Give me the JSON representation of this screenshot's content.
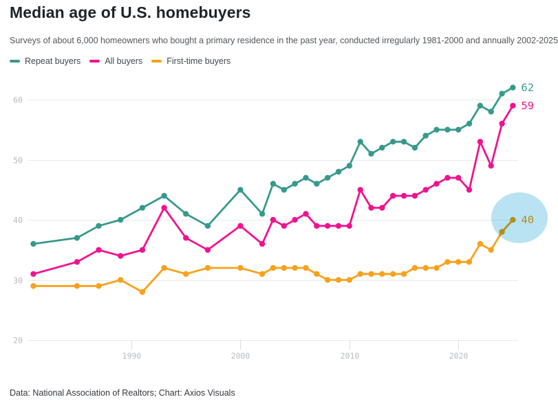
{
  "header": {
    "title": "Median age of U.S. homebuyers",
    "subtitle": "Surveys of about 6,000 homeowners who bought a primary residence in the past year, conducted irregularly 1981-2000 and annually 2002-2025"
  },
  "footer": {
    "source": "Data: National Association of Realtors; Chart: Axios Visuals"
  },
  "colors": {
    "repeat_buyers": "#36998C",
    "all_buyers": "#F0128F",
    "first_time_buyers": "#F7A11C",
    "highlight_circle": "#B9E3F3",
    "gridline": "#E9EBEC",
    "tick": "#D8DBDD",
    "axis_label": "#B5BBBF"
  },
  "chart_data": {
    "type": "line",
    "x": [
      1981,
      1985,
      1987,
      1989,
      1991,
      1993,
      1995,
      1997,
      2000,
      2002,
      2003,
      2004,
      2005,
      2006,
      2007,
      2008,
      2009,
      2010,
      2011,
      2012,
      2013,
      2014,
      2015,
      2016,
      2017,
      2018,
      2019,
      2020,
      2021,
      2022,
      2023,
      2024,
      2025
    ],
    "series": [
      {
        "name": "Repeat buyers",
        "color": "#36998C",
        "values": [
          36,
          37,
          39,
          40,
          42,
          44,
          41,
          39,
          45,
          41,
          46,
          45,
          46,
          47,
          46,
          47,
          48,
          49,
          53,
          51,
          52,
          53,
          53,
          52,
          54,
          55,
          55,
          55,
          56,
          59,
          58,
          61,
          62
        ],
        "end_label": "62"
      },
      {
        "name": "All buyers",
        "color": "#F0128F",
        "values": [
          31,
          33,
          35,
          34,
          35,
          42,
          37,
          35,
          39,
          36,
          40,
          39,
          40,
          41,
          39,
          39,
          39,
          39,
          45,
          42,
          42,
          44,
          44,
          44,
          45,
          46,
          47,
          47,
          45,
          53,
          49,
          56,
          59
        ],
        "end_label": "59"
      },
      {
        "name": "First-time buyers",
        "color": "#F7A11C",
        "values": [
          29,
          29,
          29,
          30,
          28,
          32,
          31,
          32,
          32,
          31,
          32,
          32,
          32,
          32,
          31,
          30,
          30,
          30,
          31,
          31,
          31,
          31,
          31,
          32,
          32,
          32,
          33,
          33,
          33,
          36,
          35,
          38,
          40
        ],
        "end_label": "40"
      }
    ],
    "title": "Median age of U.S. homebuyers",
    "xlabel": "",
    "ylabel": "",
    "ylim": [
      20,
      64
    ],
    "yticks": [
      20,
      30,
      40,
      50,
      60
    ],
    "xticks": [
      1990,
      2000,
      2010,
      2020
    ],
    "grid": "horizontal",
    "legend_position": "top",
    "highlight": {
      "series": "First-time buyers",
      "year": 2025,
      "value": 40,
      "color": "#B9E3F3"
    }
  }
}
